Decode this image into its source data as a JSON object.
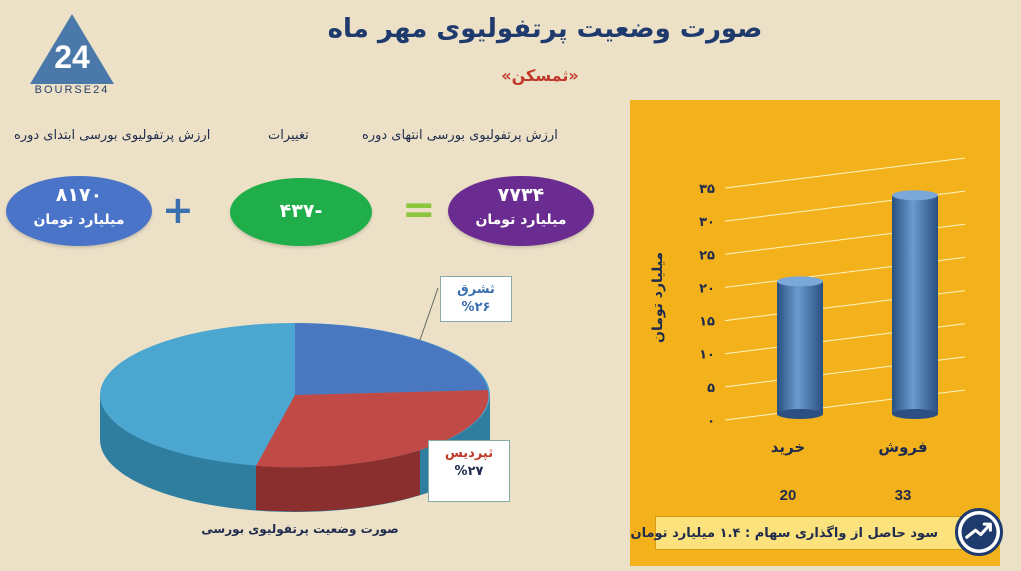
{
  "logo": {
    "text": "BOURSE24",
    "mark": "24"
  },
  "title": "صورت وضعیت پرتفولیوی مهر ماه",
  "subtitle": "«ثمسکن»",
  "headers": {
    "end_value": "ارزش پرتفولیوی بورسی انتهای دوره",
    "changes": "تغییرات",
    "start_value": "ارزش پرتفولیوی بورسی ابتدای دوره"
  },
  "equation": {
    "end": {
      "value": "۷۷۳۴",
      "unit": "میلیارد تومان",
      "color": "#6a2c91"
    },
    "change": {
      "value": "-۴۳۷",
      "color": "#1fae4a"
    },
    "start": {
      "value": "۸۱۷۰",
      "unit": "میلیارد تومان",
      "color": "#4a74c8"
    },
    "equals_icon": "equals-icon",
    "plus_icon": "plus-icon"
  },
  "pie": {
    "caption": "صورت وضعیت پرتفولیوی بورسی",
    "callouts": [
      {
        "name": "ثشرق",
        "pct": "%۲۶",
        "color": "#3a6fb0"
      },
      {
        "name": "ثپردیس",
        "pct": "%۲۷",
        "color": "#c0392b"
      }
    ],
    "colors": {
      "slice1": "#4a78c0",
      "slice2": "#c14a47",
      "slice3": "#4ba6d0"
    }
  },
  "chart_data": {
    "type": "bar",
    "categories": [
      "خرید",
      "فروش"
    ],
    "values": [
      20,
      33
    ],
    "value_labels": [
      "20",
      "33"
    ],
    "tick_labels": [
      "۰",
      "۵",
      "۱۰",
      "۱۵",
      "۲۰",
      "۲۵",
      "۳۰",
      "۳۵"
    ],
    "ylabel": "میلیارد تومان",
    "ylim": [
      0,
      35
    ],
    "grid": true,
    "bar_color": "#3f6fa8",
    "background": "#f3b21b"
  },
  "footer": {
    "text": "سود حاصل از واگذاری سهام : ۱.۴ میلیارد تومان",
    "badge_icon": "trend-up-icon"
  }
}
